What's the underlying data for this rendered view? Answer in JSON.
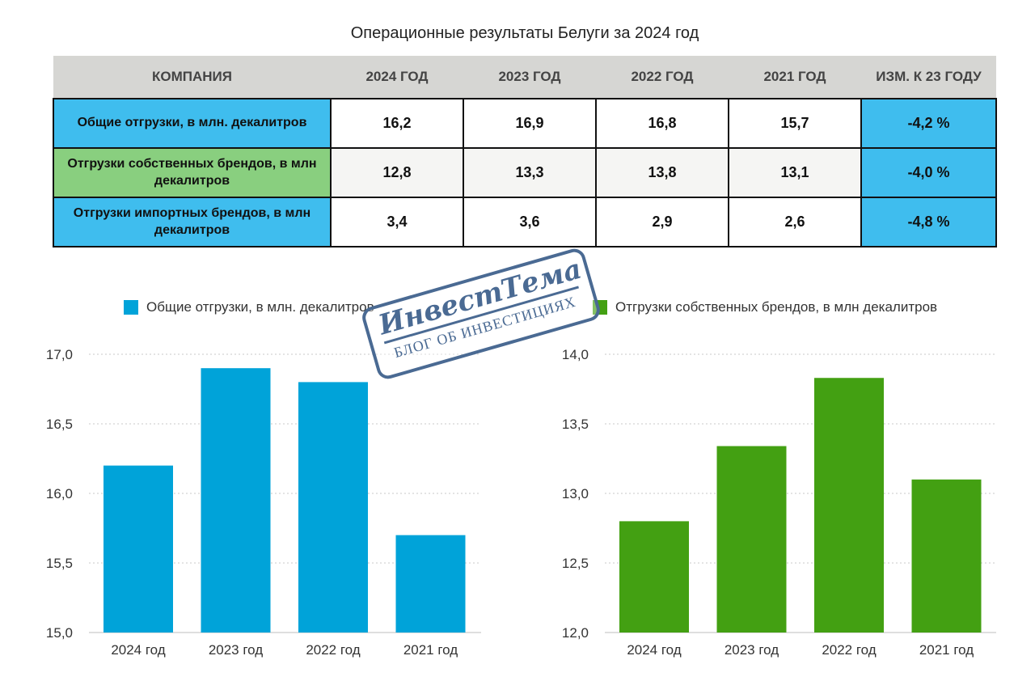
{
  "title": "Операционные результаты Белуги за 2024 год",
  "table": {
    "headers": [
      "КОМПАНИЯ",
      "2024 ГОД",
      "2023 ГОД",
      "2022 ГОД",
      "2021 ГОД",
      "ИЗМ. К 23 ГОДУ"
    ],
    "rows": [
      {
        "label": "Общие отгрузки, в млн. декалитров",
        "values": [
          "16,2",
          "16,9",
          "16,8",
          "15,7"
        ],
        "change": "-4,2 %"
      },
      {
        "label": "Отгрузки собственных брендов, в млн декалитров",
        "values": [
          "12,8",
          "13,3",
          "13,8",
          "13,1"
        ],
        "change": "-4,0 %"
      },
      {
        "label": "Отгрузки импортных брендов, в млн декалитров",
        "values": [
          "3,4",
          "3,6",
          "2,9",
          "2,6"
        ],
        "change": "-4,8 %"
      }
    ]
  },
  "watermark": {
    "brand": "ИнвестТема",
    "tagline": "БЛОГ ОБ ИНВЕСТИЦИЯХ"
  },
  "colors": {
    "header_bg": "#d6d6d3",
    "blue_cell": "#3fbdee",
    "green_cell": "#89cf7f",
    "blue_bar": "#00a3d9",
    "green_bar": "#43a012",
    "stamp": "#4a6a93"
  },
  "chart_data": [
    {
      "type": "bar",
      "title": "",
      "categories": [
        "2024 год",
        "2023 год",
        "2022 год",
        "2021 год"
      ],
      "series": [
        {
          "name": "Общие отгрузки, в млн. декалитров",
          "values": [
            16.2,
            16.9,
            16.8,
            15.7
          ]
        }
      ],
      "ylim": [
        15.0,
        17.0
      ],
      "yticks": [
        "15,0",
        "15,5",
        "16,0",
        "16,5",
        "17,0"
      ],
      "grid": true,
      "legend": "top",
      "color": "#00a3d9"
    },
    {
      "type": "bar",
      "title": "",
      "categories": [
        "2024 год",
        "2023 год",
        "2022 год",
        "2021 год"
      ],
      "series": [
        {
          "name": "Отгрузки собственных брендов, в млн декалитров",
          "values": [
            12.8,
            13.34,
            13.83,
            13.1
          ]
        }
      ],
      "ylim": [
        12.0,
        14.0
      ],
      "yticks": [
        "12,0",
        "12,5",
        "13,0",
        "13,5",
        "14,0"
      ],
      "grid": true,
      "legend": "top",
      "color": "#43a012"
    }
  ]
}
